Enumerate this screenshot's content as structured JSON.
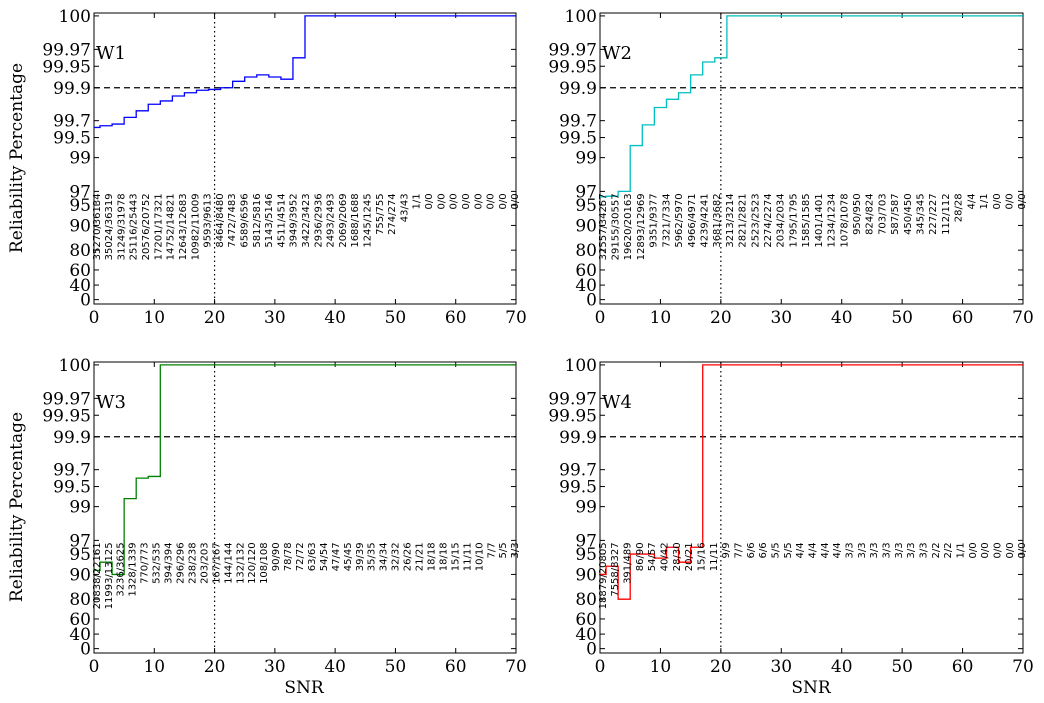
{
  "figure": {
    "ylabel": "Reliability Percentage",
    "xlabel": "SNR"
  },
  "chart_data": [
    {
      "type": "line",
      "title": "",
      "label": "W1",
      "color": "#0000ff",
      "xlim": [
        0,
        70
      ],
      "ylim_scale": "nonlinear reliability",
      "xticks": [
        "0",
        "10",
        "20",
        "30",
        "40",
        "50",
        "60",
        "70"
      ],
      "yticks": [
        "0",
        "40",
        "60",
        "80",
        "90",
        "95",
        "97",
        "99",
        "99.5",
        "99.7",
        "99.9",
        "99.95",
        "99.97",
        "100"
      ],
      "reference_lines": {
        "y": 99.9,
        "x": 20
      },
      "step_x": [
        0,
        1,
        3,
        5,
        7,
        9,
        11,
        13,
        15,
        17,
        19,
        21,
        23,
        25,
        27,
        29,
        31,
        33,
        35,
        37,
        39,
        41,
        43,
        45,
        47,
        49,
        51,
        53,
        55,
        57,
        59,
        61,
        63,
        65,
        67,
        69,
        70
      ],
      "step_y": [
        99.62,
        99.64,
        99.66,
        99.72,
        99.76,
        99.8,
        99.82,
        99.85,
        99.87,
        99.885,
        99.89,
        99.9,
        99.915,
        99.925,
        99.93,
        99.925,
        99.92,
        99.96,
        100,
        100,
        100,
        100,
        100,
        100,
        100,
        100,
        100,
        100,
        100,
        100,
        100,
        100,
        100,
        100,
        100,
        100,
        100
      ],
      "annotations": [
        "35270/36134",
        "35024/36319",
        "31249/31978",
        "25116/25443",
        "20576/20752",
        "17201/17321",
        "14752/14821",
        "12643/12683",
        "10982/11009",
        "9593/9613",
        "8464/8480",
        "7472/7483",
        "6589/6596",
        "5812/5816",
        "5143/5146",
        "4511/4514",
        "3949/3952",
        "3422/3423",
        "2936/2936",
        "2493/2493",
        "2069/2069",
        "1688/1688",
        "1245/1245",
        "755/755",
        "274/274",
        "43/43",
        "1/1",
        "0/0",
        "0/0",
        "0/0",
        "0/0",
        "0/0",
        "0/0",
        "0/0",
        "0/0"
      ]
    },
    {
      "type": "line",
      "title": "",
      "label": "W2",
      "color": "#00bfbf",
      "xlim": [
        0,
        70
      ],
      "xticks": [
        "0",
        "10",
        "20",
        "30",
        "40",
        "50",
        "60",
        "70"
      ],
      "yticks": [
        "0",
        "40",
        "60",
        "80",
        "90",
        "95",
        "97",
        "99",
        "99.5",
        "99.7",
        "99.9",
        "99.95",
        "99.97",
        "100"
      ],
      "reference_lines": {
        "y": 99.9,
        "x": 20
      },
      "step_x": [
        0,
        1,
        3,
        5,
        7,
        9,
        11,
        13,
        15,
        17,
        19,
        21,
        23,
        25,
        27,
        29,
        31,
        33,
        35,
        37,
        39,
        41,
        43,
        45,
        47,
        49,
        51,
        53,
        55,
        57,
        59,
        61,
        63,
        65,
        67,
        69,
        70
      ],
      "step_y": [
        96.2,
        96.3,
        97.0,
        99.3,
        99.65,
        99.78,
        99.83,
        99.87,
        99.93,
        99.955,
        99.96,
        100,
        100,
        100,
        100,
        100,
        100,
        100,
        100,
        100,
        100,
        100,
        100,
        100,
        100,
        100,
        100,
        100,
        100,
        100,
        100,
        100,
        100,
        100,
        100,
        100,
        100
      ],
      "annotations": [
        "32557/34257",
        "29155/30557",
        "19620/20163",
        "12893/12969",
        "9351/9377",
        "7321/7334",
        "5962/5970",
        "4966/4971",
        "4239/4241",
        "3681/3682",
        "3213/3214",
        "2821/2821",
        "2523/2523",
        "2274/2274",
        "2034/2034",
        "1795/1795",
        "1585/1585",
        "1401/1401",
        "1234/1234",
        "1078/1078",
        "950/950",
        "824/824",
        "703/703",
        "587/587",
        "450/450",
        "345/345",
        "227/227",
        "112/112",
        "28/28",
        "4/4",
        "1/1",
        "0/0",
        "0/0",
        "0/0"
      ]
    },
    {
      "type": "line",
      "title": "",
      "label": "W3",
      "color": "#008000",
      "xlim": [
        0,
        70
      ],
      "xticks": [
        "0",
        "10",
        "20",
        "30",
        "40",
        "50",
        "60",
        "70"
      ],
      "yticks": [
        "0",
        "40",
        "60",
        "80",
        "90",
        "95",
        "97",
        "99",
        "99.5",
        "99.7",
        "99.9",
        "99.95",
        "99.97",
        "100"
      ],
      "reference_lines": {
        "y": 99.9,
        "x": 20
      },
      "step_x": [
        0,
        1,
        3,
        5,
        7,
        9,
        11,
        13,
        15,
        17,
        19,
        21,
        23,
        25,
        27,
        29,
        31,
        33,
        35,
        37,
        39,
        41,
        43,
        45,
        47,
        49,
        51,
        53,
        55,
        57,
        59,
        61,
        63,
        65,
        67,
        69,
        70
      ],
      "step_y": [
        91,
        93,
        90,
        99.2,
        99.6,
        99.62,
        100,
        100,
        100,
        100,
        100,
        100,
        100,
        100,
        100,
        100,
        100,
        100,
        100,
        100,
        100,
        100,
        100,
        100,
        100,
        100,
        100,
        100,
        100,
        100,
        100,
        100,
        100,
        100,
        100,
        100,
        100
      ],
      "annotations": [
        "20838/22161",
        "11993/13125",
        "3236/3625",
        "1328/1339",
        "770/773",
        "532/535",
        "394/394",
        "296/296",
        "238/238",
        "203/203",
        "167/167",
        "144/144",
        "132/132",
        "120/120",
        "108/108",
        "90/90",
        "78/78",
        "72/72",
        "63/63",
        "54/54",
        "47/47",
        "45/45",
        "39/39",
        "35/35",
        "34/34",
        "32/32",
        "26/26",
        "21/21",
        "18/18",
        "18/18",
        "15/15",
        "11/11",
        "10/10",
        "7/7",
        "5/5",
        "3/3"
      ]
    },
    {
      "type": "line",
      "title": "",
      "label": "W4",
      "color": "#ff0000",
      "xlim": [
        0,
        70
      ],
      "xticks": [
        "0",
        "10",
        "20",
        "30",
        "40",
        "50",
        "60",
        "70"
      ],
      "yticks": [
        "0",
        "40",
        "60",
        "80",
        "90",
        "95",
        "97",
        "99",
        "99.5",
        "99.7",
        "99.9",
        "99.95",
        "99.97",
        "100"
      ],
      "reference_lines": {
        "y": 99.9,
        "x": 20
      },
      "step_x": [
        0,
        1,
        3,
        5,
        7,
        9,
        11,
        13,
        15,
        17,
        19,
        21,
        23,
        25,
        27,
        29,
        31,
        33,
        35,
        37,
        39,
        41,
        43,
        45,
        47,
        49,
        51,
        53,
        55,
        57,
        59,
        61,
        63,
        65,
        67,
        69,
        70
      ],
      "step_y": [
        90,
        92,
        80,
        95,
        95,
        94,
        96,
        93,
        96,
        100,
        100,
        100,
        100,
        100,
        100,
        100,
        100,
        100,
        100,
        100,
        100,
        100,
        100,
        100,
        100,
        100,
        100,
        100,
        100,
        100,
        100,
        100,
        100,
        100,
        100,
        100,
        100
      ],
      "annotations": [
        "18879/20805",
        "7558/8327",
        "391/489",
        "86/90",
        "54/57",
        "40/42",
        "28/30",
        "20/21",
        "15/16",
        "11/11",
        "9/9",
        "7/7",
        "6/6",
        "6/6",
        "5/5",
        "5/5",
        "4/4",
        "4/4",
        "4/4",
        "4/4",
        "3/3",
        "3/3",
        "3/3",
        "3/3",
        "3/3",
        "3/3",
        "3/3",
        "2/2",
        "2/2",
        "1/1",
        "0/0",
        "0/0",
        "0/0",
        "0/0",
        "0/0"
      ]
    }
  ]
}
